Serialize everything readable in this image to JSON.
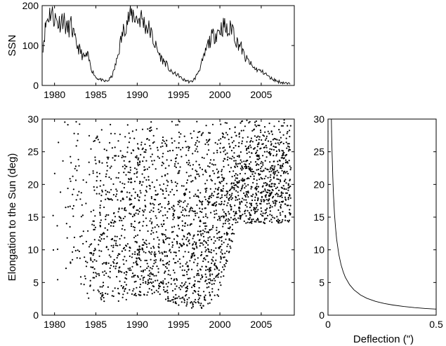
{
  "chart_data": [
    {
      "id": "ssn",
      "type": "line",
      "title": "",
      "xlabel": "",
      "ylabel": "SSN",
      "xlim": [
        1978.5,
        2009
      ],
      "ylim": [
        0,
        200
      ],
      "xticks": [
        1980,
        1985,
        1990,
        1995,
        2000,
        2005
      ],
      "yticks": [
        0,
        100,
        200
      ],
      "grid": false,
      "series": [
        {
          "x": [
            1978.6,
            1979.0,
            1979.5,
            1980.0,
            1980.5,
            1981.0,
            1981.5,
            1982.0,
            1982.5,
            1983.0,
            1983.5,
            1984.0,
            1984.5,
            1985.0,
            1985.5,
            1986.0,
            1986.5,
            1987.0,
            1987.5,
            1988.0,
            1988.5,
            1989.0,
            1989.5,
            1990.0,
            1990.5,
            1991.0,
            1991.5,
            1992.0,
            1992.5,
            1993.0,
            1993.5,
            1994.0,
            1994.5,
            1995.0,
            1995.5,
            1996.0,
            1996.5,
            1997.0,
            1997.5,
            1998.0,
            1998.5,
            1999.0,
            1999.5,
            2000.0,
            2000.5,
            2001.0,
            2001.5,
            2002.0,
            2002.5,
            2003.0,
            2003.5,
            2004.0,
            2004.5,
            2005.0,
            2005.5,
            2006.0,
            2006.5,
            2007.0,
            2007.5,
            2008.0,
            2008.5
          ],
          "values": [
            100,
            160,
            185,
            170,
            155,
            170,
            140,
            150,
            110,
            90,
            70,
            75,
            40,
            20,
            15,
            10,
            12,
            25,
            60,
            110,
            150,
            170,
            180,
            165,
            170,
            150,
            140,
            110,
            85,
            65,
            55,
            35,
            30,
            25,
            15,
            12,
            8,
            18,
            40,
            65,
            100,
            120,
            130,
            140,
            150,
            130,
            150,
            110,
            100,
            70,
            60,
            45,
            40,
            35,
            30,
            20,
            15,
            10,
            8,
            5,
            3
          ]
        }
      ]
    },
    {
      "id": "elongation",
      "type": "scatter",
      "title": "",
      "xlabel": "",
      "ylabel": "Elongation to the Sun (deg)",
      "xlim": [
        1978.5,
        2009
      ],
      "ylim": [
        0,
        30
      ],
      "xticks": [
        1980,
        1985,
        1990,
        1995,
        2000,
        2005
      ],
      "yticks": [
        0,
        5,
        10,
        15,
        20,
        25,
        30
      ],
      "grid": false,
      "description_note": "",
      "series": [
        {
          "density_profile": [
            {
              "year": 1980,
              "density": 0.1,
              "min_elong": 4
            },
            {
              "year": 1982,
              "density": 0.15,
              "min_elong": 8
            },
            {
              "year": 1984,
              "density": 0.35,
              "min_elong": 2
            },
            {
              "year": 1986,
              "density": 0.45,
              "min_elong": 2
            },
            {
              "year": 1988,
              "density": 0.6,
              "min_elong": 2
            },
            {
              "year": 1990,
              "density": 0.8,
              "min_elong": 3
            },
            {
              "year": 1992,
              "density": 0.8,
              "min_elong": 3
            },
            {
              "year": 1994,
              "density": 0.7,
              "min_elong": 2
            },
            {
              "year": 1996,
              "density": 1.0,
              "min_elong": 1
            },
            {
              "year": 1998,
              "density": 1.0,
              "min_elong": 1
            },
            {
              "year": 2000,
              "density": 0.9,
              "min_elong": 3
            },
            {
              "year": 2002,
              "density": 0.8,
              "min_elong": 14
            },
            {
              "year": 2004,
              "density": 0.8,
              "min_elong": 14
            },
            {
              "year": 2006,
              "density": 0.8,
              "min_elong": 14
            },
            {
              "year": 2008,
              "density": 0.8,
              "min_elong": 14
            }
          ]
        }
      ]
    },
    {
      "id": "deflection",
      "type": "line",
      "title": "",
      "xlabel": "Deflection (\")",
      "ylabel": "",
      "xlim": [
        0,
        0.5
      ],
      "ylim": [
        0,
        30
      ],
      "xticks": [
        0,
        0.5
      ],
      "yticks": [
        0,
        5,
        10,
        15,
        20,
        25,
        30
      ],
      "grid": false,
      "series": [
        {
          "x": [
            0.0155,
            0.017,
            0.019,
            0.022,
            0.025,
            0.03,
            0.035,
            0.04,
            0.05,
            0.06,
            0.07,
            0.08,
            0.1,
            0.12,
            0.15,
            0.18,
            0.22,
            0.26,
            0.3,
            0.35,
            0.4,
            0.45,
            0.5
          ],
          "values": [
            30,
            27.4,
            24.5,
            21.2,
            18.6,
            15.5,
            13.3,
            11.6,
            9.3,
            7.75,
            6.64,
            5.81,
            4.65,
            3.88,
            3.1,
            2.58,
            2.11,
            1.79,
            1.55,
            1.33,
            1.16,
            1.03,
            0.93
          ]
        }
      ]
    }
  ]
}
